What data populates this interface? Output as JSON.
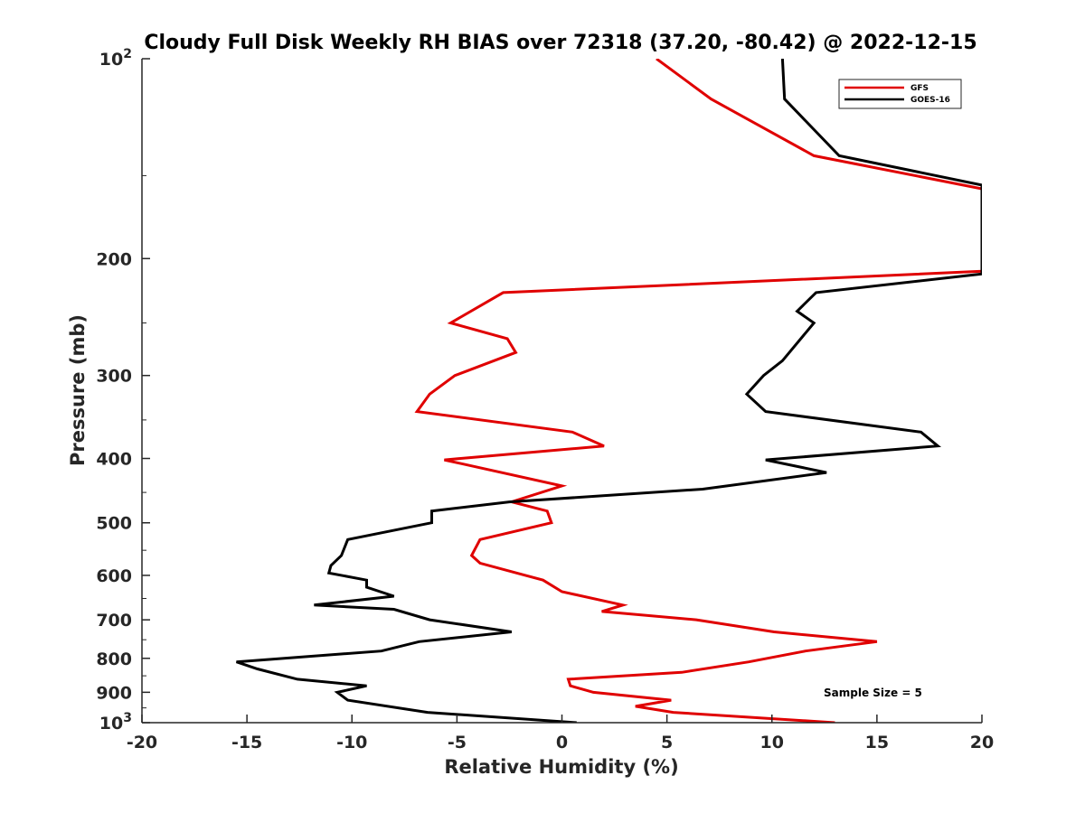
{
  "chart_data": {
    "type": "line",
    "title": "Cloudy Full Disk Weekly RH BIAS over 72318 (37.20, -80.42) @ 2022-12-15",
    "xlabel": "Relative Humidity (%)",
    "ylabel": "Pressure (mb)",
    "xlim": [
      -20,
      20
    ],
    "ylim": [
      100,
      1000
    ],
    "y_scale": "log",
    "y_reversed": true,
    "grid": false,
    "legend_position": "top-right",
    "x_ticks": [
      -20,
      -15,
      -10,
      -5,
      0,
      5,
      10,
      15,
      20
    ],
    "y_ticks": [
      200,
      300,
      400,
      500,
      600,
      700,
      800,
      900
    ],
    "y_tick_labels": [
      "200",
      "300",
      "400",
      "500",
      "600",
      "700",
      "800",
      "900"
    ],
    "y_decade_labels": [
      {
        "value": 100,
        "base": "10",
        "exp": "2"
      },
      {
        "value": 1000,
        "base": "10",
        "exp": "3"
      }
    ],
    "annotation": "Sample Size = 5",
    "series": [
      {
        "name": "GFS",
        "color": "#e00000",
        "points": [
          [
            4.5,
            100
          ],
          [
            7.1,
            115
          ],
          [
            12.0,
            140
          ],
          [
            20,
            157
          ],
          [
            20,
            209
          ],
          [
            -2.8,
            225
          ],
          [
            -5.3,
            250
          ],
          [
            -2.6,
            264
          ],
          [
            -2.2,
            277
          ],
          [
            -5.1,
            300
          ],
          [
            -6.3,
            320
          ],
          [
            -6.9,
            340
          ],
          [
            0.5,
            365
          ],
          [
            2.0,
            383
          ],
          [
            -5.6,
            402
          ],
          [
            0,
            440
          ],
          [
            -2.4,
            465
          ],
          [
            -0.7,
            480
          ],
          [
            -0.5,
            500
          ],
          [
            -3.9,
            530
          ],
          [
            -4.3,
            560
          ],
          [
            -3.9,
            575
          ],
          [
            -0.9,
            610
          ],
          [
            0,
            635
          ],
          [
            2.9,
            665
          ],
          [
            1.9,
            680
          ],
          [
            6.4,
            700
          ],
          [
            10.1,
            730
          ],
          [
            15.0,
            755
          ],
          [
            11.6,
            780
          ],
          [
            8.9,
            810
          ],
          [
            5.7,
            840
          ],
          [
            0.3,
            860
          ],
          [
            0.4,
            880
          ],
          [
            1.5,
            900
          ],
          [
            5.2,
            925
          ],
          [
            3.5,
            945
          ],
          [
            5.3,
            965
          ],
          [
            13.0,
            1000
          ]
        ]
      },
      {
        "name": "GOES-16",
        "color": "#000000",
        "points": [
          [
            10.5,
            100
          ],
          [
            10.6,
            115
          ],
          [
            13.2,
            140
          ],
          [
            20,
            155
          ],
          [
            20,
            211
          ],
          [
            12.1,
            225
          ],
          [
            11.2,
            240
          ],
          [
            12.0,
            250
          ],
          [
            10.5,
            285
          ],
          [
            9.6,
            300
          ],
          [
            8.8,
            320
          ],
          [
            9.7,
            340
          ],
          [
            17.1,
            365
          ],
          [
            17.9,
            383
          ],
          [
            9.7,
            402
          ],
          [
            12.6,
            420
          ],
          [
            6.7,
            445
          ],
          [
            -2.5,
            465
          ],
          [
            -6.2,
            480
          ],
          [
            -6.2,
            500
          ],
          [
            -10.2,
            530
          ],
          [
            -10.5,
            560
          ],
          [
            -11.0,
            580
          ],
          [
            -11.1,
            595
          ],
          [
            -9.3,
            610
          ],
          [
            -9.3,
            625
          ],
          [
            -8.0,
            645
          ],
          [
            -11.8,
            665
          ],
          [
            -8.0,
            675
          ],
          [
            -6.3,
            700
          ],
          [
            -2.4,
            730
          ],
          [
            -6.8,
            755
          ],
          [
            -8.6,
            780
          ],
          [
            -15.5,
            810
          ],
          [
            -14.5,
            830
          ],
          [
            -12.6,
            860
          ],
          [
            -9.3,
            880
          ],
          [
            -10.7,
            900
          ],
          [
            -10.2,
            925
          ],
          [
            -6.4,
            965
          ],
          [
            0.7,
            1000
          ]
        ]
      }
    ]
  }
}
